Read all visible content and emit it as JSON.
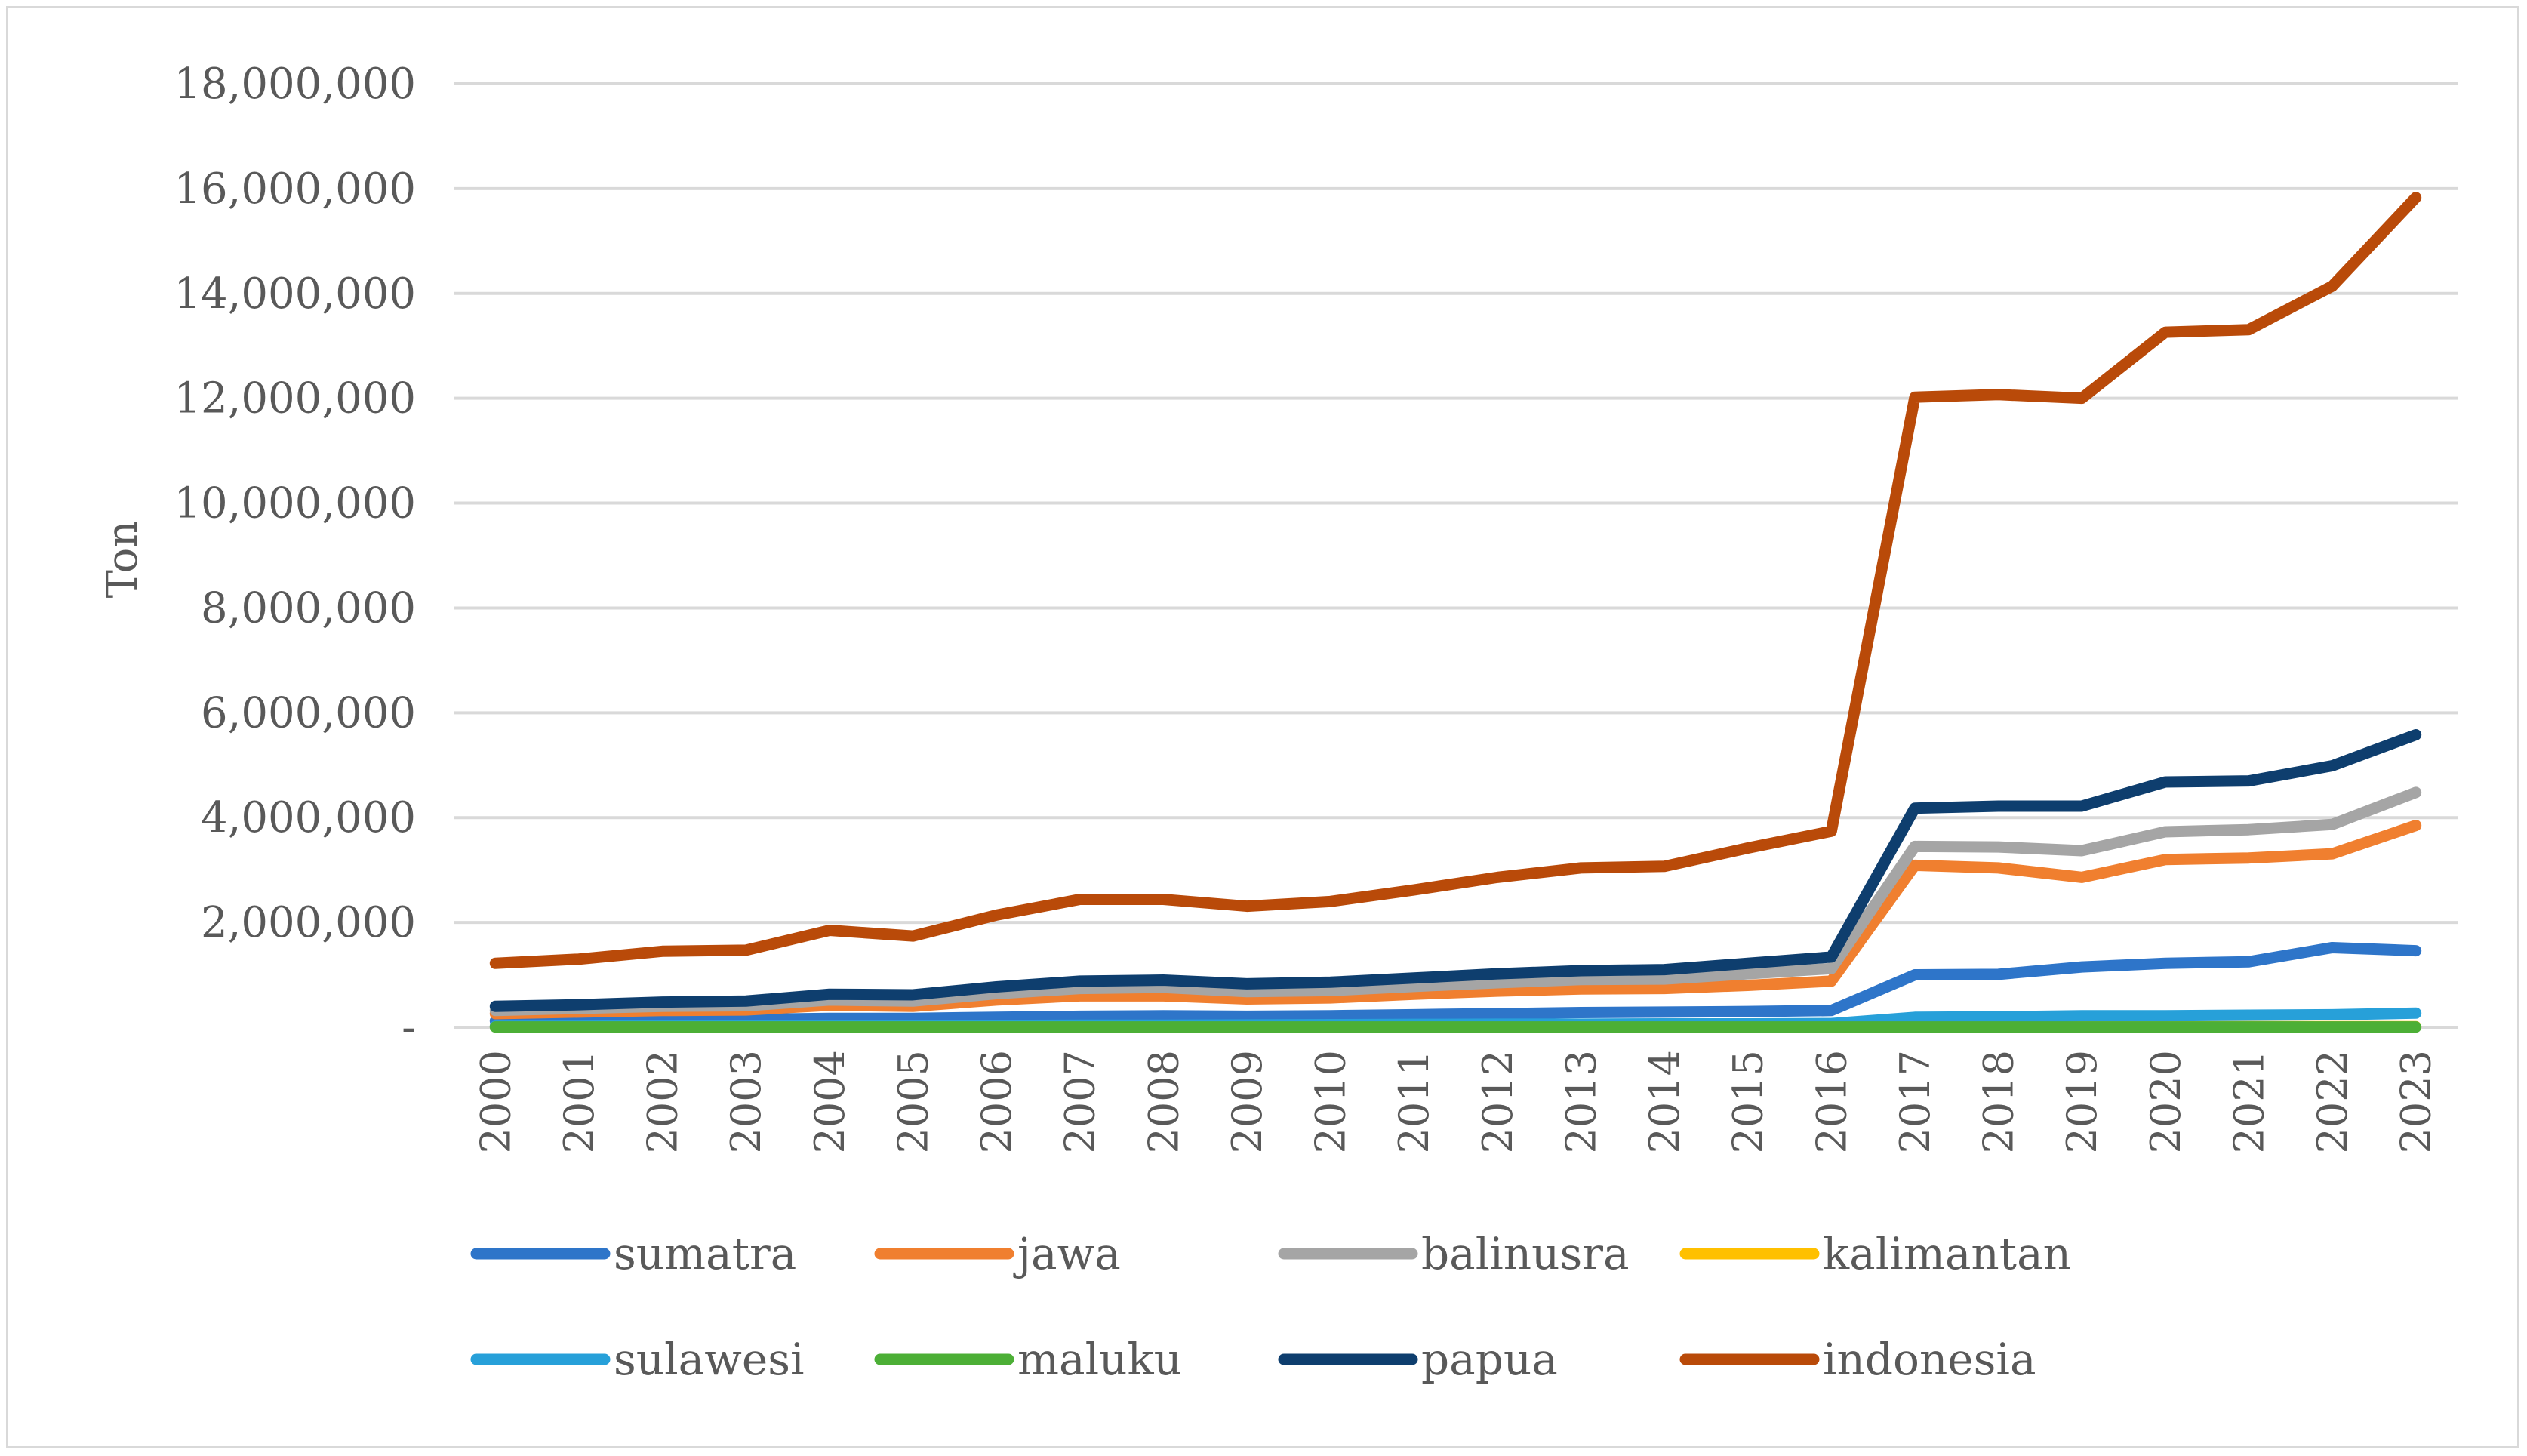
{
  "chart_data": {
    "type": "line",
    "title": "",
    "xlabel": "",
    "ylabel": "Ton",
    "ylim": [
      0,
      18000000
    ],
    "y_ticks": [
      0,
      2000000,
      4000000,
      6000000,
      8000000,
      10000000,
      12000000,
      14000000,
      16000000,
      18000000
    ],
    "y_tick_labels": [
      "-",
      "2,000,000",
      "4,000,000",
      "6,000,000",
      "8,000,000",
      "10,000,000",
      "12,000,000",
      "14,000,000",
      "16,000,000",
      "18,000,000"
    ],
    "grid": true,
    "legend_position": "bottom",
    "categories": [
      "2000",
      "2001",
      "2002",
      "2003",
      "2004",
      "2005",
      "2006",
      "2007",
      "2008",
      "2009",
      "2010",
      "2011",
      "2012",
      "2013",
      "2014",
      "2015",
      "2016",
      "2017",
      "2018",
      "2019",
      "2020",
      "2021",
      "2022",
      "2023"
    ],
    "series": [
      {
        "name": "sumatra",
        "color": "#2e75c9",
        "values": [
          120000,
          130000,
          140000,
          150000,
          170000,
          170000,
          190000,
          210000,
          220000,
          210000,
          220000,
          240000,
          260000,
          280000,
          290000,
          300000,
          320000,
          1000000,
          1010000,
          1150000,
          1220000,
          1250000,
          1520000,
          1460000
        ]
      },
      {
        "name": "jawa",
        "color": "#f07f2f",
        "values": [
          260000,
          290000,
          320000,
          330000,
          420000,
          400000,
          520000,
          600000,
          600000,
          540000,
          560000,
          630000,
          690000,
          730000,
          740000,
          800000,
          880000,
          3090000,
          3040000,
          2860000,
          3200000,
          3230000,
          3310000,
          3850000
        ]
      },
      {
        "name": "balinusra",
        "color": "#a5a5a5",
        "values": [
          320000,
          360000,
          400000,
          410000,
          520000,
          500000,
          640000,
          740000,
          760000,
          680000,
          700000,
          780000,
          850000,
          910000,
          920000,
          1020000,
          1120000,
          3450000,
          3440000,
          3370000,
          3730000,
          3770000,
          3870000,
          4480000
        ]
      },
      {
        "name": "kalimantan",
        "color": "#ffc000",
        "values": [
          10000,
          10000,
          10000,
          10000,
          10000,
          10000,
          10000,
          10000,
          10000,
          10000,
          10000,
          10000,
          10000,
          10000,
          10000,
          10000,
          10000,
          10000,
          10000,
          10000,
          10000,
          10000,
          10000,
          10000
        ]
      },
      {
        "name": "sulawesi",
        "color": "#27a0d9",
        "values": [
          20000,
          20000,
          25000,
          25000,
          30000,
          30000,
          35000,
          40000,
          40000,
          45000,
          50000,
          55000,
          60000,
          60000,
          65000,
          65000,
          70000,
          190000,
          200000,
          220000,
          220000,
          230000,
          240000,
          270000
        ]
      },
      {
        "name": "maluku",
        "color": "#4caf36",
        "values": [
          5000,
          5000,
          5000,
          5000,
          5000,
          5000,
          5000,
          5000,
          5000,
          5000,
          5000,
          5000,
          5000,
          5000,
          5000,
          5000,
          5000,
          5000,
          5000,
          5000,
          5000,
          5000,
          5000,
          5000
        ]
      },
      {
        "name": "papua",
        "color": "#0e3e6e",
        "values": [
          400000,
          430000,
          480000,
          500000,
          630000,
          620000,
          770000,
          880000,
          900000,
          830000,
          860000,
          940000,
          1020000,
          1080000,
          1100000,
          1220000,
          1340000,
          4180000,
          4220000,
          4220000,
          4680000,
          4700000,
          4990000,
          5580000
        ]
      },
      {
        "name": "indonesia",
        "color": "#b94a09",
        "values": [
          1220000,
          1300000,
          1450000,
          1470000,
          1850000,
          1740000,
          2140000,
          2440000,
          2440000,
          2310000,
          2400000,
          2620000,
          2860000,
          3040000,
          3070000,
          3420000,
          3740000,
          12020000,
          12070000,
          12000000,
          13260000,
          13310000,
          14140000,
          15830000
        ]
      }
    ]
  }
}
